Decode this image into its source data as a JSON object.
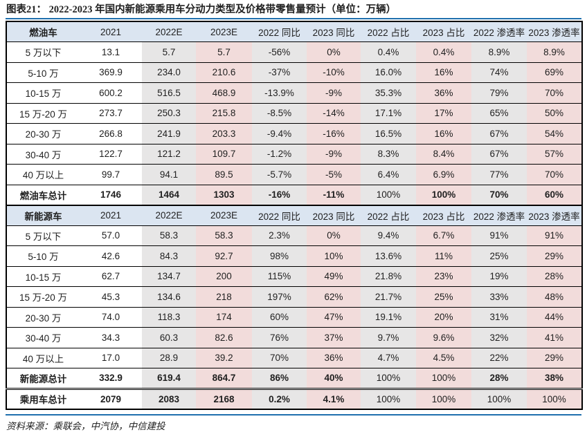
{
  "title": "图表21：  2022-2023 年国内新能源乘用车分动力类型及价格带零售量预计（单位：万辆）",
  "source_note": "资料来源：乘联会，中汽协，中信建投",
  "colors": {
    "header_bg": "#dbe5f1",
    "col_2022_bg": "#e7e6e6",
    "col_2023_bg": "#f2dcdb",
    "rule_blue": "#1e6fad",
    "border": "#000000"
  },
  "columns": [
    "2021",
    "2022E",
    "2023E",
    "2022 同比",
    "2023 同比",
    "2022 占比",
    "2023 占比",
    "2022 渗透率",
    "2023 渗透率"
  ],
  "sections": [
    {
      "header_label": "燃油车",
      "rows": [
        {
          "label": "5 万以下",
          "values": [
            "13.1",
            "5.7",
            "5.7",
            "-56%",
            "0%",
            "0.4%",
            "0.4%",
            "8.9%",
            "8.9%"
          ],
          "bold": false
        },
        {
          "label": "5-10 万",
          "values": [
            "369.9",
            "234.0",
            "210.6",
            "-37%",
            "-10%",
            "16.0%",
            "16%",
            "74%",
            "69%"
          ],
          "bold": false
        },
        {
          "label": "10-15 万",
          "values": [
            "600.2",
            "516.5",
            "468.9",
            "-13.9%",
            "-9%",
            "35.3%",
            "36%",
            "79%",
            "70%"
          ],
          "bold": false
        },
        {
          "label": "15 万-20 万",
          "values": [
            "273.7",
            "250.3",
            "215.8",
            "-8.5%",
            "-14%",
            "17.1%",
            "17%",
            "65%",
            "50%"
          ],
          "bold": false
        },
        {
          "label": "20-30 万",
          "values": [
            "266.8",
            "241.9",
            "203.3",
            "-9.4%",
            "-16%",
            "16.5%",
            "16%",
            "67%",
            "54%"
          ],
          "bold": false
        },
        {
          "label": "30-40 万",
          "values": [
            "122.7",
            "121.2",
            "109.7",
            "-1.2%",
            "-9%",
            "8.3%",
            "8.4%",
            "67%",
            "57%"
          ],
          "bold": false
        },
        {
          "label": "40 万以上",
          "values": [
            "99.7",
            "94.1",
            "89.5",
            "-5.7%",
            "-5%",
            "6.4%",
            "6.9%",
            "77%",
            "70%"
          ],
          "bold": false
        },
        {
          "label": "燃油车总计",
          "values": [
            "1746",
            "1464",
            "1303",
            "-16%",
            "-11%",
            "100%",
            "100%",
            "70%",
            "60%"
          ],
          "bold": true,
          "regular_cells": [
            5
          ]
        }
      ]
    },
    {
      "header_label": "新能源车",
      "rows": [
        {
          "label": "5 万以下",
          "values": [
            "57.0",
            "58.3",
            "58.3",
            "2.3%",
            "0%",
            "9.4%",
            "6.7%",
            "91%",
            "91%"
          ],
          "bold": false
        },
        {
          "label": "5-10 万",
          "values": [
            "42.6",
            "84.3",
            "92.7",
            "98%",
            "10%",
            "13.6%",
            "11%",
            "25%",
            "29%"
          ],
          "bold": false
        },
        {
          "label": "10-15 万",
          "values": [
            "62.7",
            "134.7",
            "200",
            "115%",
            "49%",
            "21.8%",
            "23%",
            "19%",
            "28%"
          ],
          "bold": false
        },
        {
          "label": "15 万-20 万",
          "values": [
            "45.3",
            "134.6",
            "218",
            "197%",
            "62%",
            "21.7%",
            "25%",
            "33%",
            "48%"
          ],
          "bold": false
        },
        {
          "label": "20-30 万",
          "values": [
            "74.0",
            "118.3",
            "174",
            "60%",
            "47%",
            "19.1%",
            "20%",
            "31%",
            "44%"
          ],
          "bold": false
        },
        {
          "label": "30-40 万",
          "values": [
            "34.3",
            "60.3",
            "82.6",
            "76%",
            "37%",
            "9.7%",
            "9.6%",
            "32%",
            "41%"
          ],
          "bold": false
        },
        {
          "label": "40 万以上",
          "values": [
            "17.0",
            "28.9",
            "39.2",
            "70%",
            "36%",
            "4.7%",
            "4.5%",
            "22%",
            "29%"
          ],
          "bold": false
        },
        {
          "label": "新能源总计",
          "values": [
            "332.9",
            "619.4",
            "864.7",
            "86%",
            "40%",
            "100%",
            "100%",
            "28%",
            "38%"
          ],
          "bold": true,
          "regular_cells": [
            5,
            6
          ]
        },
        {
          "label": "乘用车总计",
          "values": [
            "2079",
            "2083",
            "2168",
            "0.2%",
            "4.1%",
            "100%",
            "100%",
            "100%",
            "100%"
          ],
          "bold": true,
          "regular_cells": [
            5,
            6,
            7,
            8
          ],
          "double_top": true
        }
      ]
    }
  ]
}
